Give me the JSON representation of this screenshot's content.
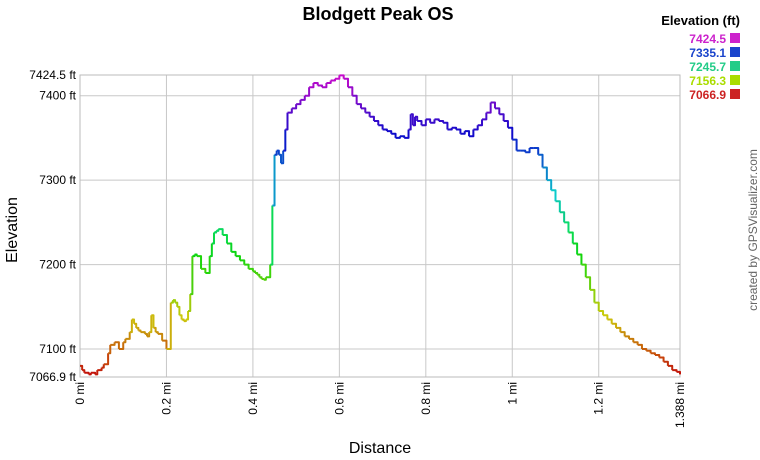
{
  "chart_data": {
    "type": "line",
    "title": "Blodgett Peak OS",
    "xlabel": "Distance",
    "ylabel": "Elevation",
    "xlim": [
      0,
      1.388
    ],
    "ylim": [
      7066.9,
      7424.5
    ],
    "x_ticks": [
      {
        "value": 0,
        "label": "0 mi"
      },
      {
        "value": 0.2,
        "label": "0.2 mi"
      },
      {
        "value": 0.4,
        "label": "0.4 mi"
      },
      {
        "value": 0.6,
        "label": "0.6 mi"
      },
      {
        "value": 0.8,
        "label": "0.8 mi"
      },
      {
        "value": 1.0,
        "label": "1 mi"
      },
      {
        "value": 1.2,
        "label": "1.2 mi"
      },
      {
        "value": 1.388,
        "label": "1.388 mi"
      }
    ],
    "y_ticks": [
      {
        "value": 7066.9,
        "label": "7066.9 ft"
      },
      {
        "value": 7100,
        "label": "7100 ft"
      },
      {
        "value": 7200,
        "label": "7200 ft"
      },
      {
        "value": 7300,
        "label": "7300 ft"
      },
      {
        "value": 7400,
        "label": "7400 ft"
      },
      {
        "value": 7424.5,
        "label": "7424.5 ft"
      }
    ],
    "grid": true,
    "legend": {
      "title": "Elevation (ft)",
      "placement": "top-right",
      "entries": [
        {
          "label": "7424.5",
          "color": "#cc22cc"
        },
        {
          "label": "7335.1",
          "color": "#1a44cc"
        },
        {
          "label": "7245.7",
          "color": "#22cc88"
        },
        {
          "label": "7156.3",
          "color": "#aadd00"
        },
        {
          "label": "7066.9",
          "color": "#cc2222"
        }
      ]
    },
    "credit": "created by GPSVisualizer.com",
    "series": [
      {
        "x": [
          0,
          0.005,
          0.01,
          0.02,
          0.025,
          0.035,
          0.04,
          0.05,
          0.055,
          0.065,
          0.07,
          0.08,
          0.09,
          0.1,
          0.105,
          0.115,
          0.12,
          0.125,
          0.13,
          0.135,
          0.14,
          0.15,
          0.155,
          0.16,
          0.165,
          0.17,
          0.175,
          0.18,
          0.19,
          0.2,
          0.21,
          0.215,
          0.22,
          0.225,
          0.23,
          0.235,
          0.24,
          0.245,
          0.25,
          0.255,
          0.26,
          0.265,
          0.27,
          0.28,
          0.29,
          0.3,
          0.305,
          0.31,
          0.315,
          0.32,
          0.33,
          0.34,
          0.35,
          0.36,
          0.37,
          0.38,
          0.39,
          0.4,
          0.405,
          0.41,
          0.415,
          0.42,
          0.425,
          0.43,
          0.44,
          0.445,
          0.45,
          0.455,
          0.46,
          0.465,
          0.47,
          0.475,
          0.48,
          0.49,
          0.5,
          0.51,
          0.52,
          0.53,
          0.54,
          0.55,
          0.56,
          0.57,
          0.58,
          0.59,
          0.6,
          0.61,
          0.62,
          0.63,
          0.64,
          0.65,
          0.66,
          0.67,
          0.68,
          0.69,
          0.7,
          0.71,
          0.72,
          0.73,
          0.74,
          0.75,
          0.76,
          0.765,
          0.77,
          0.775,
          0.78,
          0.79,
          0.8,
          0.81,
          0.82,
          0.83,
          0.84,
          0.85,
          0.86,
          0.87,
          0.88,
          0.89,
          0.9,
          0.91,
          0.92,
          0.93,
          0.94,
          0.95,
          0.96,
          0.97,
          0.98,
          0.99,
          1.0,
          1.01,
          1.02,
          1.03,
          1.04,
          1.05,
          1.06,
          1.07,
          1.08,
          1.09,
          1.1,
          1.11,
          1.12,
          1.13,
          1.14,
          1.15,
          1.16,
          1.17,
          1.18,
          1.19,
          1.2,
          1.21,
          1.22,
          1.23,
          1.24,
          1.25,
          1.26,
          1.27,
          1.28,
          1.29,
          1.3,
          1.31,
          1.32,
          1.33,
          1.34,
          1.35,
          1.36,
          1.37,
          1.38,
          1.388
        ],
        "y": [
          7080,
          7075,
          7072,
          7070,
          7072,
          7070,
          7075,
          7078,
          7082,
          7095,
          7105,
          7108,
          7100,
          7108,
          7112,
          7120,
          7135,
          7130,
          7125,
          7122,
          7120,
          7118,
          7115,
          7120,
          7140,
          7125,
          7120,
          7118,
          7110,
          7100,
          7155,
          7158,
          7155,
          7150,
          7140,
          7135,
          7133,
          7135,
          7145,
          7165,
          7210,
          7212,
          7210,
          7195,
          7190,
          7210,
          7225,
          7238,
          7240,
          7242,
          7235,
          7225,
          7215,
          7210,
          7205,
          7200,
          7195,
          7192,
          7190,
          7188,
          7185,
          7183,
          7182,
          7185,
          7200,
          7270,
          7330,
          7335,
          7330,
          7320,
          7335,
          7360,
          7380,
          7385,
          7390,
          7395,
          7400,
          7410,
          7415,
          7412,
          7410,
          7415,
          7418,
          7420,
          7424,
          7420,
          7410,
          7400,
          7390,
          7385,
          7380,
          7375,
          7370,
          7365,
          7360,
          7358,
          7355,
          7350,
          7352,
          7350,
          7360,
          7378,
          7365,
          7375,
          7370,
          7365,
          7372,
          7368,
          7372,
          7370,
          7368,
          7360,
          7362,
          7360,
          7355,
          7358,
          7352,
          7360,
          7365,
          7372,
          7380,
          7392,
          7385,
          7378,
          7370,
          7362,
          7348,
          7335,
          7335,
          7333,
          7338,
          7338,
          7330,
          7315,
          7300,
          7288,
          7275,
          7262,
          7250,
          7238,
          7225,
          7212,
          7200,
          7185,
          7170,
          7155,
          7145,
          7140,
          7135,
          7130,
          7125,
          7120,
          7115,
          7112,
          7108,
          7105,
          7100,
          7098,
          7095,
          7093,
          7090,
          7085,
          7080,
          7075,
          7073,
          7070
        ]
      }
    ]
  }
}
